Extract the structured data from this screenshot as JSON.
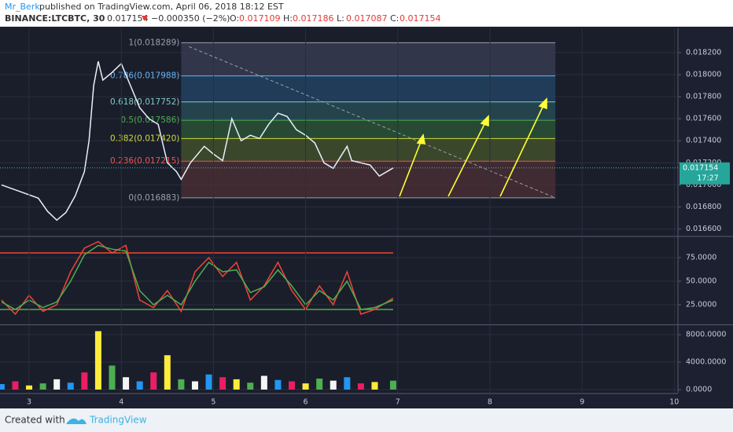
{
  "header": {
    "author": "Mr_Berk",
    "published": "published on TradingView.com, April 06, 2018 18:12 EST",
    "symbol": "BINANCE:LTCBTC, 30",
    "last": 0.017154,
    "change": "−0.000350 (−2%)",
    "ohlc": [
      {
        "label": "O:",
        "value": 0.017109
      },
      {
        "label": "H:",
        "value": 0.017186
      },
      {
        "label": "L:",
        "value": 0.017087
      },
      {
        "label": "C:",
        "value": 0.017154
      }
    ]
  },
  "footer": {
    "created": "Created with",
    "brand": "TradingView"
  },
  "price_tag": {
    "value": 0.017154,
    "countdown": "17:27"
  },
  "chart_data": [
    {
      "type": "line",
      "color": "#e8f0f8",
      "x": [
        2.7,
        2.9,
        3.1,
        3.2,
        3.3,
        3.4,
        3.5,
        3.6,
        3.65,
        3.7,
        3.75,
        3.8,
        3.9,
        4.0,
        4.1,
        4.2,
        4.3,
        4.4,
        4.5,
        4.6,
        4.65,
        4.75,
        4.9,
        5.0,
        5.1,
        5.2,
        5.3,
        5.4,
        5.5,
        5.6,
        5.7,
        5.8,
        5.9,
        6.0,
        6.1,
        6.2,
        6.3,
        6.45,
        6.5,
        6.6,
        6.7,
        6.8,
        6.95
      ],
      "values": [
        0.017,
        0.01694,
        0.01688,
        0.01676,
        0.01668,
        0.01675,
        0.0169,
        0.01712,
        0.0174,
        0.0179,
        0.01812,
        0.01795,
        0.01802,
        0.0181,
        0.0179,
        0.0177,
        0.0176,
        0.01755,
        0.0172,
        0.01712,
        0.01705,
        0.0172,
        0.01735,
        0.01728,
        0.01722,
        0.0176,
        0.0174,
        0.01745,
        0.01742,
        0.01755,
        0.01765,
        0.01762,
        0.0175,
        0.01745,
        0.01738,
        0.0172,
        0.01715,
        0.01735,
        0.01722,
        0.0172,
        0.01718,
        0.01708,
        0.017154
      ],
      "xlim": [
        2.684,
        10.04
      ],
      "ylim": [
        0.01654,
        0.01842
      ],
      "yticks": [
        {
          "value": 0.0166,
          "label": "0.016600"
        },
        {
          "value": 0.0168,
          "label": "0.016800"
        },
        {
          "value": 0.017,
          "label": "0.017000"
        },
        {
          "value": 0.0172,
          "label": "0.017200"
        },
        {
          "value": 0.0174,
          "label": "0.017400"
        },
        {
          "value": 0.0176,
          "label": "0.017600"
        },
        {
          "value": 0.0178,
          "label": "0.017800"
        },
        {
          "value": 0.018,
          "label": "0.018000"
        },
        {
          "value": 0.0182,
          "label": "0.018200"
        }
      ],
      "fib_range_x": [
        4.65,
        8.71
      ],
      "fib_levels": [
        {
          "value": 0.018289,
          "label": "1(0.018289)",
          "color": "#9aa0ac"
        },
        {
          "value": 0.017988,
          "label": "0.786(0.017988)",
          "color": "#64b5f6"
        },
        {
          "value": 0.017752,
          "label": "0.618(0.017752)",
          "color": "#80cbc4"
        },
        {
          "value": 0.017586,
          "label": "0.5(0.017586)",
          "color": "#4caf50"
        },
        {
          "value": 0.01742,
          "label": "0.382(0.017420)",
          "color": "#cddc39"
        },
        {
          "value": 0.017215,
          "label": "0.236(0.017215)",
          "color": "#ef5350"
        },
        {
          "value": 0.016883,
          "label": "0(0.016883)",
          "color": "#9aa0ac"
        }
      ],
      "fib_fills": [
        "#3a3f55",
        "#24476a",
        "#28505a",
        "#2e5a3a",
        "#46562c",
        "#4e3036"
      ]
    },
    {
      "type": "line",
      "x": [
        2.7,
        2.85,
        3.0,
        3.15,
        3.3,
        3.45,
        3.6,
        3.75,
        3.9,
        4.05,
        4.2,
        4.35,
        4.5,
        4.65,
        4.8,
        4.95,
        5.1,
        5.25,
        5.4,
        5.55,
        5.7,
        5.85,
        6.0,
        6.15,
        6.3,
        6.45,
        6.6,
        6.75,
        6.95
      ],
      "series": [
        {
          "color": "#f44336",
          "values": [
            30,
            15,
            35,
            18,
            25,
            60,
            85,
            92,
            80,
            88,
            30,
            22,
            40,
            18,
            60,
            75,
            55,
            70,
            30,
            45,
            70,
            40,
            20,
            45,
            25,
            60,
            15,
            20,
            32
          ]
        },
        {
          "color": "#4caf50",
          "values": [
            28,
            20,
            30,
            22,
            28,
            50,
            78,
            88,
            84,
            82,
            40,
            25,
            35,
            25,
            50,
            70,
            60,
            62,
            38,
            44,
            62,
            45,
            25,
            40,
            30,
            50,
            20,
            22,
            30
          ]
        }
      ],
      "bands": [
        {
          "value": 80,
          "color": "#f44336"
        },
        {
          "value": 20,
          "color": "#4caf50"
        }
      ],
      "xlim": [
        2.684,
        10.04
      ],
      "ylim": [
        5,
        96.7
      ],
      "yticks": [
        {
          "value": 25,
          "label": "25.0000"
        },
        {
          "value": 50,
          "label": "50.0000"
        },
        {
          "value": 75,
          "label": "75.0000"
        }
      ]
    },
    {
      "type": "bar",
      "x": [
        2.7,
        2.85,
        3.0,
        3.15,
        3.3,
        3.45,
        3.6,
        3.75,
        3.9,
        4.05,
        4.2,
        4.35,
        4.5,
        4.65,
        4.8,
        4.95,
        5.1,
        5.25,
        5.4,
        5.55,
        5.7,
        5.85,
        6.0,
        6.15,
        6.3,
        6.45,
        6.6,
        6.75,
        6.95
      ],
      "values": [
        800,
        1200,
        600,
        900,
        1500,
        1000,
        2500,
        8500,
        3500,
        1800,
        1200,
        2500,
        5000,
        1500,
        1200,
        2200,
        1800,
        1500,
        1000,
        2000,
        1400,
        1200,
        900,
        1600,
        1300,
        1800,
        900,
        1100,
        1300
      ],
      "palette": [
        "#2196f3",
        "#e91e63",
        "#ffeb3b",
        "#4caf50",
        "#f5f5f5"
      ],
      "xlim": [
        2.684,
        10.04
      ],
      "ylim": [
        -457,
        9257
      ],
      "yticks": [
        {
          "value": 0,
          "label": "0.0000"
        },
        {
          "value": 4000,
          "label": "4000.0000"
        },
        {
          "value": 8000,
          "label": "8000.0000"
        }
      ],
      "xticks": [
        3,
        4,
        5,
        6,
        7,
        8,
        9,
        10
      ]
    }
  ]
}
